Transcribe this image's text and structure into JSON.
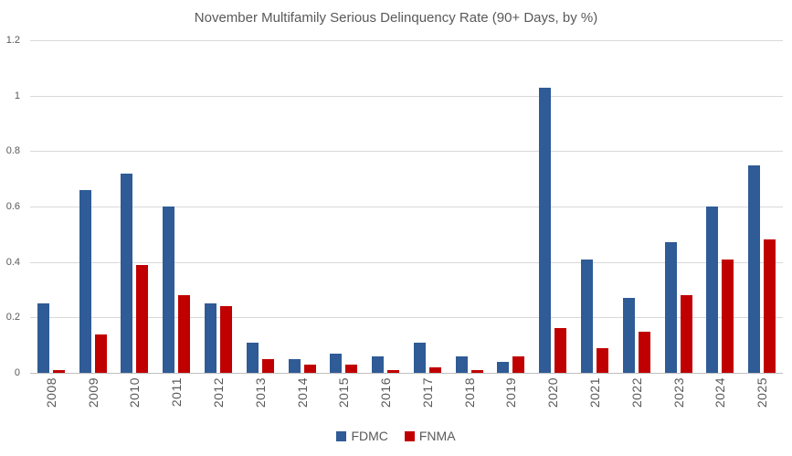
{
  "chart_data": {
    "type": "bar",
    "title": "November Multifamily Serious Delinquency Rate (90+ Days, by %)",
    "xlabel": "",
    "ylabel": "",
    "categories": [
      "2008",
      "2009",
      "2010",
      "2011",
      "2012",
      "2013",
      "2014",
      "2015",
      "2016",
      "2017",
      "2018",
      "2019",
      "2020",
      "2021",
      "2022",
      "2023",
      "2024",
      "2025"
    ],
    "series": [
      {
        "name": "FDMC",
        "color": "#2F5B96",
        "values": [
          0.25,
          0.66,
          0.72,
          0.6,
          0.25,
          0.11,
          0.05,
          0.07,
          0.06,
          0.11,
          0.06,
          0.04,
          1.03,
          0.41,
          0.27,
          0.47,
          0.6,
          0.75
        ]
      },
      {
        "name": "FNMA",
        "color": "#C00000",
        "values": [
          0.01,
          0.14,
          0.39,
          0.28,
          0.24,
          0.05,
          0.03,
          0.03,
          0.01,
          0.02,
          0.01,
          0.06,
          0.16,
          0.09,
          0.15,
          0.28,
          0.41,
          0.48
        ]
      }
    ],
    "ylim": [
      0,
      1.2
    ],
    "yticks": [
      0,
      0.2,
      0.4,
      0.6,
      0.8,
      1,
      1.2
    ],
    "grid": true,
    "legend_position": "bottom",
    "colors": {
      "title_text": "#595959",
      "axis_text": "#595959",
      "gridline": "#D9D9D9",
      "axis_line": "#BFBFBF",
      "background": "#FFFFFF"
    }
  }
}
